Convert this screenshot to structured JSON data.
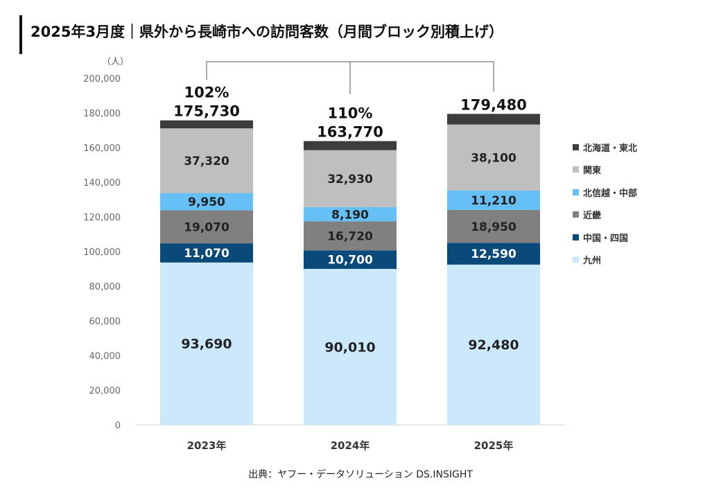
{
  "title": "2025年3月度｜県外から長崎市への訪問客数（月間ブロック別積上げ）",
  "source": "出典：ヤフー・データソリューション DS.INSIGHT",
  "chart_data": {
    "type": "bar",
    "stacked": true,
    "categories": [
      "2023年",
      "2024年",
      "2025年"
    ],
    "series": [
      {
        "name": "九州",
        "color": "#cce9fb",
        "values": [
          93690,
          90010,
          92480
        ]
      },
      {
        "name": "中国・四国",
        "color": "#0a4a7a",
        "values": [
          11070,
          10700,
          12590
        ]
      },
      {
        "name": "近畿",
        "color": "#808080",
        "values": [
          19070,
          16720,
          18950
        ]
      },
      {
        "name": "北信越・中部",
        "color": "#66bff5",
        "values": [
          9950,
          8190,
          11210
        ]
      },
      {
        "name": "関東",
        "color": "#bfbfbf",
        "values": [
          37320,
          32930,
          38100
        ]
      },
      {
        "name": "北海道・東北",
        "color": "#3d3d3d",
        "values": [
          4630,
          5220,
          6150
        ]
      }
    ],
    "data_labels": [
      [
        "93,690",
        "90,010",
        "92,480"
      ],
      [
        "11,070",
        "10,700",
        "12,590"
      ],
      [
        "19,070",
        "16,720",
        "18,950"
      ],
      [
        "9,950",
        "8,190",
        "11,210"
      ],
      [
        "37,320",
        "32,930",
        "38,100"
      ],
      [
        "",
        "",
        ""
      ]
    ],
    "totals": [
      175730,
      163770,
      179480
    ],
    "total_labels": [
      "175,730",
      "163,770",
      "179,480"
    ],
    "pct_labels": [
      "102%",
      "110%",
      ""
    ],
    "ylabel": "（人）",
    "ylim": [
      0,
      200000
    ],
    "yticks": [
      0,
      20000,
      40000,
      60000,
      80000,
      100000,
      120000,
      140000,
      160000,
      180000,
      200000
    ],
    "ytick_labels": [
      "0",
      "20,000",
      "40,000",
      "60,000",
      "80,000",
      "100,000",
      "120,000",
      "140,000",
      "160,000",
      "180,000",
      "200,000"
    ],
    "grid": false,
    "legend_position": "right",
    "legend_order": [
      5,
      4,
      3,
      2,
      1,
      0
    ]
  }
}
